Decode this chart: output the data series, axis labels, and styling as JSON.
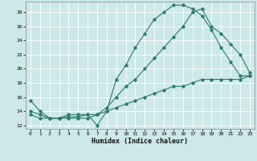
{
  "xlabel": "Humidex (Indice chaleur)",
  "bg_color": "#cce8e8",
  "grid_color": "#ffffff",
  "line_color": "#2d7a6e",
  "xlim": [
    -0.5,
    23.5
  ],
  "ylim": [
    11.5,
    29.5
  ],
  "xticks": [
    0,
    1,
    2,
    3,
    4,
    5,
    6,
    7,
    8,
    9,
    10,
    11,
    12,
    13,
    14,
    15,
    16,
    17,
    18,
    19,
    20,
    21,
    22,
    23
  ],
  "yticks": [
    12,
    14,
    16,
    18,
    20,
    22,
    24,
    26,
    28
  ],
  "curve1_x": [
    0,
    1,
    2,
    3,
    4,
    5,
    6,
    7,
    8,
    9,
    10,
    11,
    12,
    13,
    14,
    15,
    16,
    17,
    18,
    19,
    20,
    21,
    22,
    23
  ],
  "curve1_y": [
    15.5,
    14.0,
    13.0,
    13.0,
    13.5,
    13.5,
    13.5,
    12.0,
    14.0,
    18.5,
    20.5,
    23.0,
    25.0,
    27.0,
    28.0,
    29.0,
    29.0,
    28.5,
    27.5,
    25.5,
    23.0,
    21.0,
    19.0,
    19.0
  ],
  "curve2_x": [
    0,
    1,
    2,
    3,
    4,
    5,
    6,
    7,
    8,
    9,
    10,
    11,
    12,
    13,
    14,
    15,
    16,
    17,
    18,
    19,
    20,
    21,
    22,
    23
  ],
  "curve2_y": [
    14.0,
    13.5,
    13.0,
    13.0,
    13.2,
    13.2,
    13.5,
    13.5,
    14.5,
    16.0,
    17.5,
    18.5,
    20.0,
    21.5,
    23.0,
    24.5,
    26.0,
    28.0,
    28.5,
    26.0,
    25.0,
    23.5,
    22.0,
    19.5
  ],
  "curve3_x": [
    0,
    1,
    2,
    3,
    4,
    5,
    6,
    7,
    8,
    9,
    10,
    11,
    12,
    13,
    14,
    15,
    16,
    17,
    18,
    19,
    20,
    21,
    22,
    23
  ],
  "curve3_y": [
    13.5,
    13.0,
    13.0,
    13.0,
    13.0,
    13.0,
    13.0,
    13.5,
    14.0,
    14.5,
    15.0,
    15.5,
    16.0,
    16.5,
    17.0,
    17.5,
    17.5,
    18.0,
    18.5,
    18.5,
    18.5,
    18.5,
    18.5,
    19.0
  ]
}
